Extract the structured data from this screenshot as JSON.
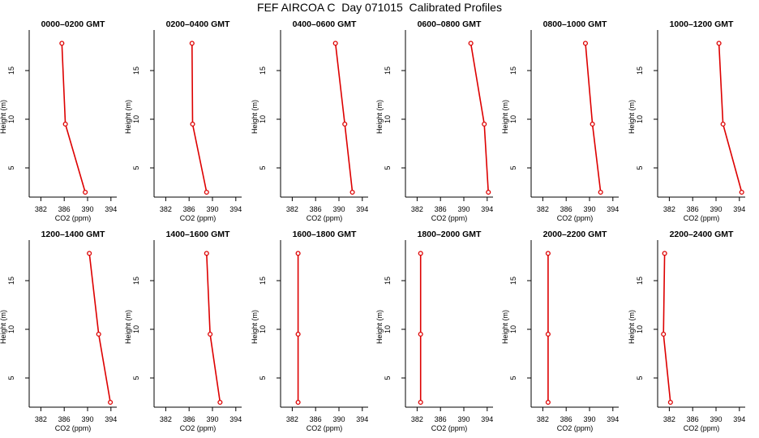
{
  "title": "FEF AIRCOA C  Day 071015  Calibrated Profiles",
  "chart_data": {
    "type": "line",
    "shared": {
      "xlabel": "CO2 (ppm)",
      "ylabel": "Height (m)",
      "xlim": [
        380,
        395
      ],
      "ylim": [
        2,
        18.5
      ],
      "xticks": [
        382,
        386,
        390,
        394
      ],
      "yticks": [
        5,
        10,
        15
      ],
      "line_color": "#dd0000",
      "marker": "open-circle"
    },
    "panels": [
      {
        "title": "0000–0200 GMT",
        "heights": [
          2.5,
          9.5,
          17.8
        ],
        "values": [
          389.6,
          386.2,
          385.6
        ]
      },
      {
        "title": "0200–0400 GMT",
        "heights": [
          2.5,
          9.5,
          17.8
        ],
        "values": [
          389.0,
          386.6,
          386.5
        ]
      },
      {
        "title": "0400–0600 GMT",
        "heights": [
          2.5,
          9.5,
          17.8
        ],
        "values": [
          392.3,
          391.0,
          389.4
        ]
      },
      {
        "title": "0600–0800 GMT",
        "heights": [
          2.5,
          9.5,
          17.8
        ],
        "values": [
          394.2,
          393.5,
          391.2
        ]
      },
      {
        "title": "0800–1000 GMT",
        "heights": [
          2.5,
          9.5,
          17.8
        ],
        "values": [
          391.9,
          390.5,
          389.3
        ]
      },
      {
        "title": "1000–1200 GMT",
        "heights": [
          2.5,
          9.5,
          17.8
        ],
        "values": [
          394.4,
          391.2,
          390.5
        ]
      },
      {
        "title": "1200–1400 GMT",
        "heights": [
          2.5,
          9.5,
          17.8
        ],
        "values": [
          393.9,
          391.9,
          390.3
        ]
      },
      {
        "title": "1400–1600 GMT",
        "heights": [
          2.5,
          9.5,
          17.8
        ],
        "values": [
          391.3,
          389.6,
          389.0
        ]
      },
      {
        "title": "1600–1800 GMT",
        "heights": [
          2.5,
          9.5,
          17.8
        ],
        "values": [
          383.0,
          383.0,
          383.0
        ]
      },
      {
        "title": "1800–2000 GMT",
        "heights": [
          2.5,
          9.5,
          17.8
        ],
        "values": [
          382.6,
          382.6,
          382.6
        ]
      },
      {
        "title": "2000–2200 GMT",
        "heights": [
          2.5,
          9.5,
          17.8
        ],
        "values": [
          382.9,
          382.9,
          382.9
        ]
      },
      {
        "title": "2200–2400 GMT",
        "heights": [
          2.5,
          9.5,
          17.8
        ],
        "values": [
          382.2,
          381.0,
          381.2
        ]
      }
    ]
  }
}
